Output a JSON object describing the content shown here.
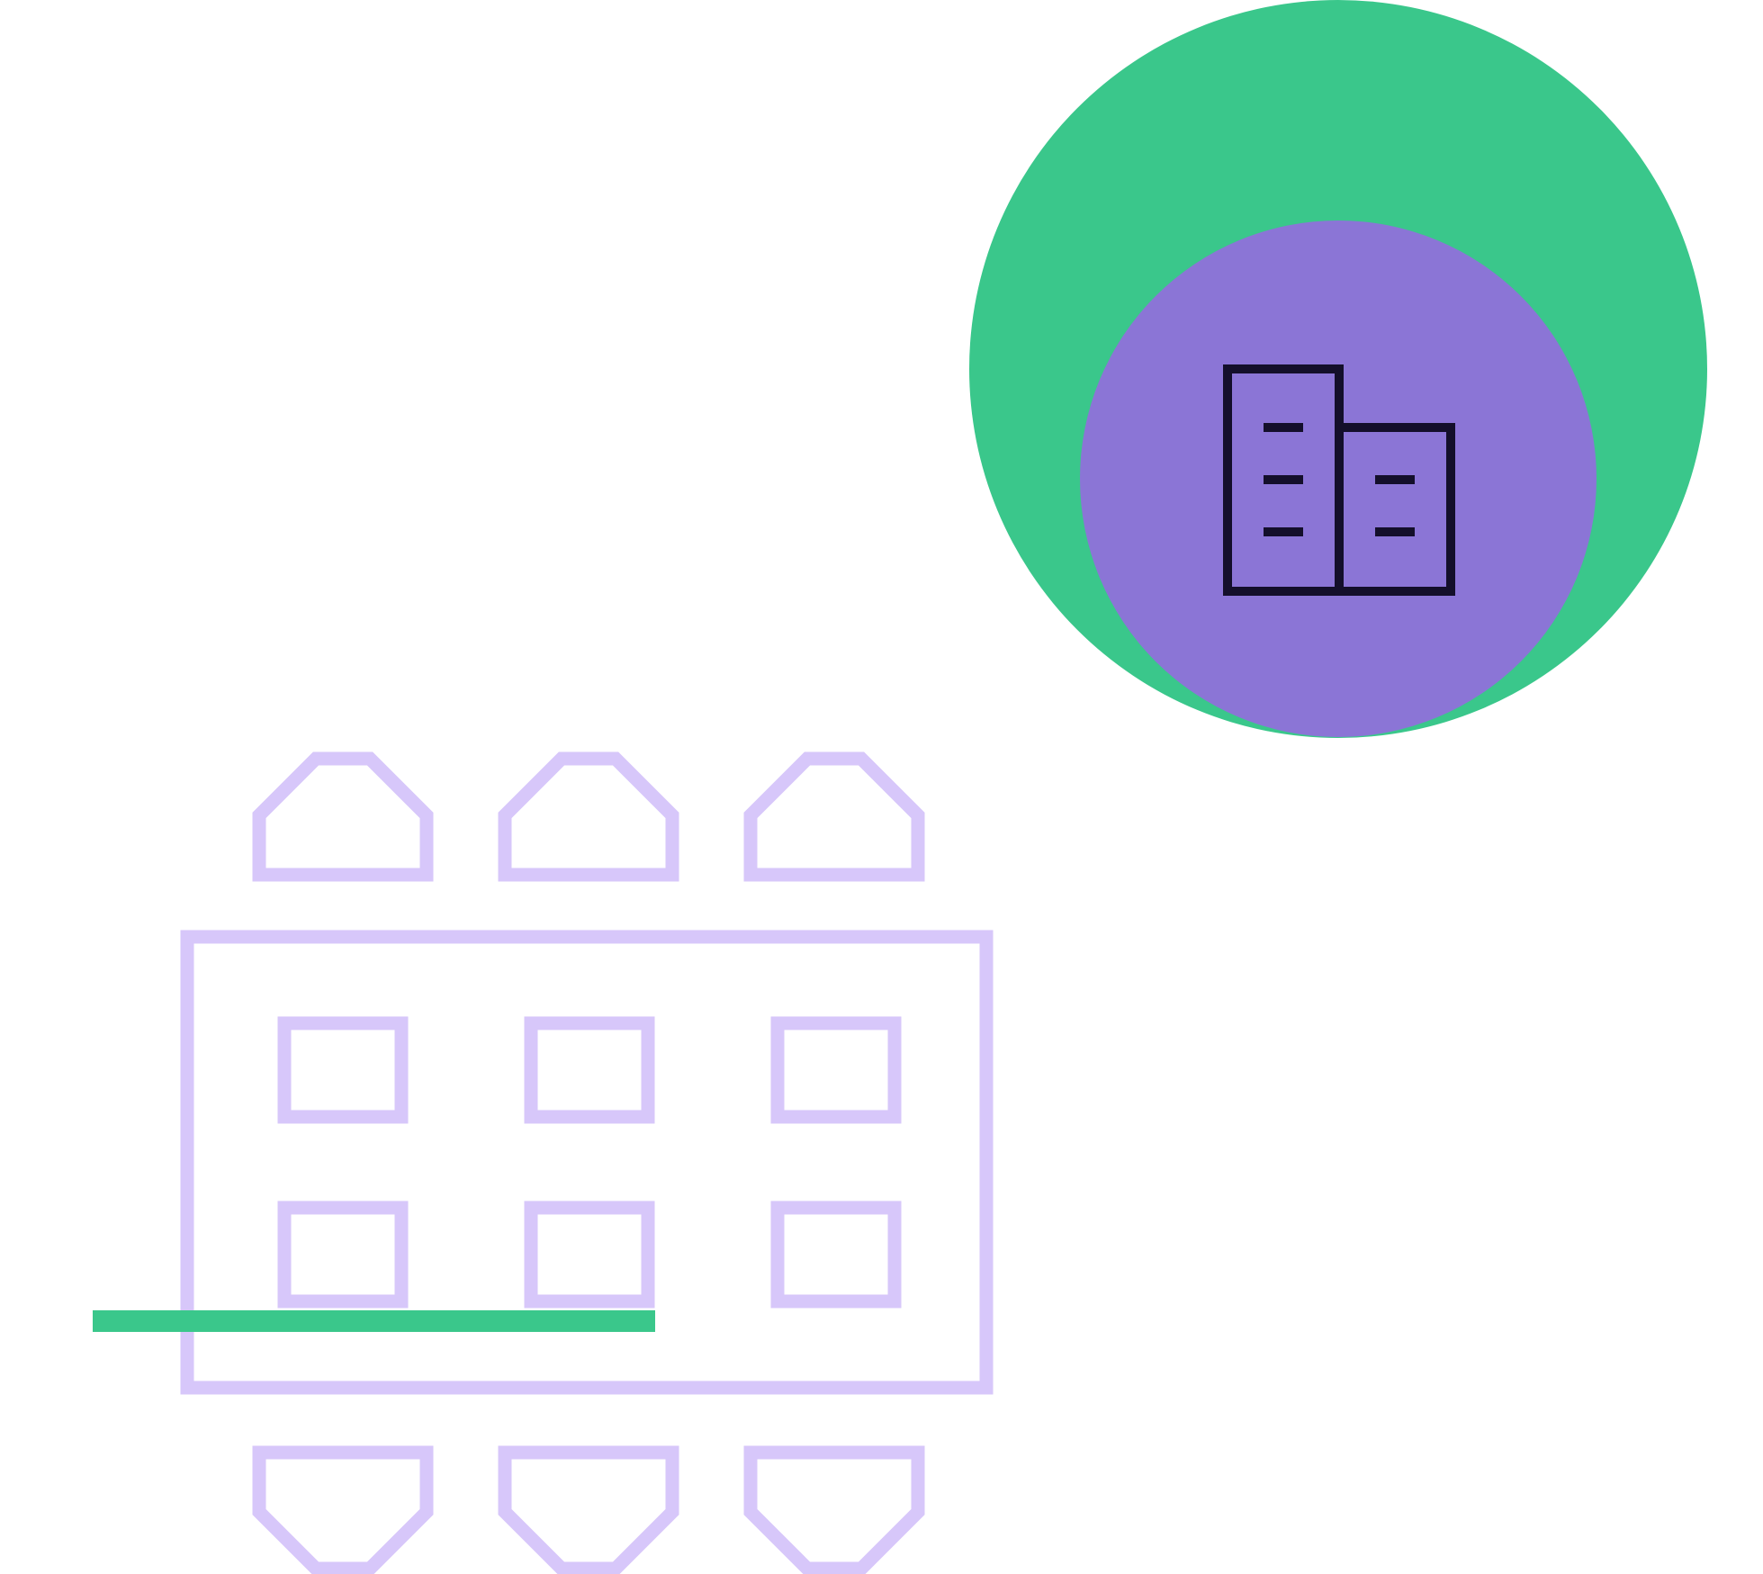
{
  "illustration": {
    "subject": "meeting-room-with-building-badge",
    "colors": {
      "background": "#ffffff",
      "badge_outer": "#3AC78B",
      "badge_inner": "#8B75D6",
      "building_stroke": "#140F2B",
      "furniture_stroke": "#D7C7FA",
      "accent_bar": "#3AC78B"
    },
    "icons": {
      "badge": "building-icon",
      "table": "conference-table",
      "chairs": "chair-icon",
      "screens": "screen-icon"
    },
    "counts": {
      "chairs_top": 3,
      "chairs_bottom": 3,
      "screens_on_table": 6
    }
  }
}
